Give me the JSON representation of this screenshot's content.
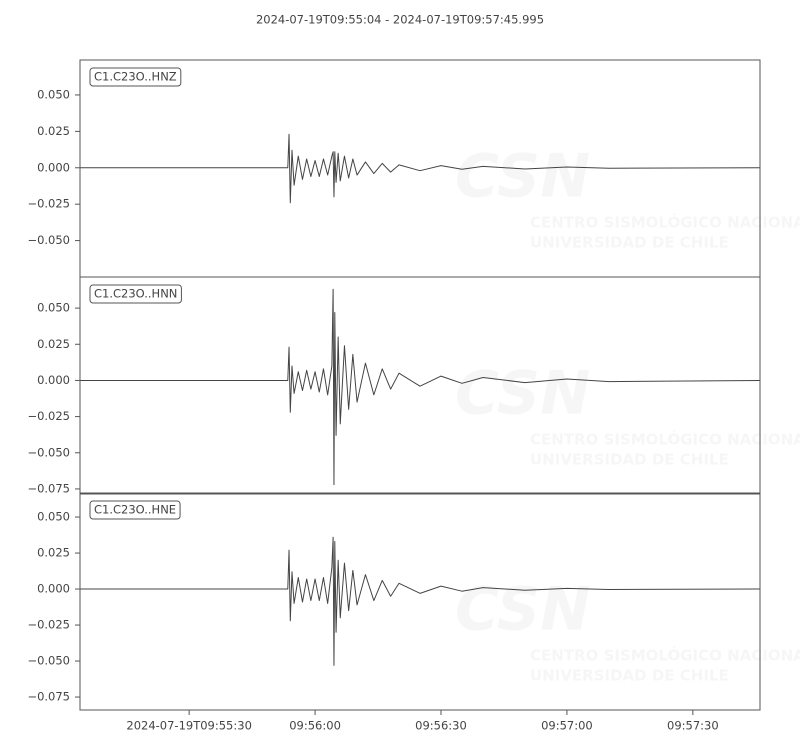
{
  "title": "2024-07-19T09:55:04  -  2024-07-19T09:57:45.995",
  "watermark": {
    "logo": "CSN",
    "line1": "CENTRO SISMOLÓGICO NACIONAL",
    "line2": "UNIVERSIDAD DE CHILE"
  },
  "chart_data": [
    {
      "type": "line",
      "label": "C1.C23O..HNZ",
      "x": [
        "09:55:04",
        "09:55:53.5",
        "09:55:53.8",
        "09:55:54.1",
        "09:55:54.5",
        "09:55:55",
        "09:55:56",
        "09:55:57",
        "09:55:58",
        "09:55:59",
        "09:56:00",
        "09:56:01",
        "09:56:02",
        "09:56:03",
        "09:56:04",
        "09:56:04.3",
        "09:56:04.5",
        "09:56:04.7",
        "09:56:05",
        "09:56:05.5",
        "09:56:06",
        "09:56:07",
        "09:56:08",
        "09:56:09",
        "09:56:10",
        "09:56:12",
        "09:56:14",
        "09:56:16",
        "09:56:18",
        "09:56:20",
        "09:56:25",
        "09:56:30",
        "09:56:35",
        "09:56:40",
        "09:56:50",
        "09:57:00",
        "09:57:10",
        "09:57:45.995"
      ],
      "series": [
        {
          "color": "#444444",
          "values": [
            0,
            0,
            0.023,
            -0.024,
            0.012,
            -0.012,
            0.008,
            -0.008,
            0.006,
            -0.006,
            0.005,
            -0.006,
            0.006,
            -0.005,
            0.008,
            0.011,
            -0.02,
            0.011,
            -0.01,
            0.01,
            -0.009,
            0.008,
            -0.007,
            0.006,
            -0.005,
            0.004,
            -0.004,
            0.003,
            -0.003,
            0.002,
            -0.002,
            0.0015,
            -0.001,
            0.001,
            -0.0008,
            0.0005,
            -0.0003,
            0
          ]
        }
      ],
      "xlim": [
        "09:55:04",
        "09:57:45.995"
      ],
      "ylim": [
        -0.075,
        0.074
      ],
      "yticks": [
        {
          "value": -0.05,
          "label": "−0.050"
        },
        {
          "value": -0.025,
          "label": "−0.025"
        },
        {
          "value": 0,
          "label": "0.000"
        },
        {
          "value": 0.025,
          "label": "0.025"
        },
        {
          "value": 0.05,
          "label": "0.050"
        }
      ]
    },
    {
      "type": "line",
      "label": "C1.C23O..HNN",
      "x": [
        "09:55:04",
        "09:55:53.5",
        "09:55:53.8",
        "09:55:54.1",
        "09:55:54.5",
        "09:55:55",
        "09:55:56",
        "09:55:57",
        "09:55:58",
        "09:55:59",
        "09:56:00",
        "09:56:01",
        "09:56:02",
        "09:56:03",
        "09:56:04",
        "09:56:04.3",
        "09:56:04.5",
        "09:56:04.7",
        "09:56:05",
        "09:56:05.5",
        "09:56:06",
        "09:56:07",
        "09:56:08",
        "09:56:09",
        "09:56:10",
        "09:56:12",
        "09:56:14",
        "09:56:16",
        "09:56:18",
        "09:56:20",
        "09:56:25",
        "09:56:30",
        "09:56:35",
        "09:56:40",
        "09:56:50",
        "09:57:00",
        "09:57:10",
        "09:57:45.995"
      ],
      "series": [
        {
          "color": "#444444",
          "values": [
            0,
            0,
            0.023,
            -0.022,
            0.01,
            -0.009,
            0.006,
            -0.007,
            0.007,
            -0.006,
            0.006,
            -0.008,
            0.008,
            -0.01,
            0.01,
            0.063,
            -0.072,
            0.047,
            -0.038,
            0.03,
            -0.03,
            0.024,
            -0.02,
            0.018,
            -0.015,
            0.012,
            -0.01,
            0.008,
            -0.006,
            0.005,
            -0.004,
            0.003,
            -0.002,
            0.002,
            -0.0015,
            0.001,
            -0.0008,
            0
          ]
        }
      ],
      "xlim": [
        "09:55:04",
        "09:57:45.995"
      ],
      "ylim": [
        -0.0785,
        0.0715
      ],
      "yticks": [
        {
          "value": -0.075,
          "label": "−0.075"
        },
        {
          "value": -0.05,
          "label": "−0.050"
        },
        {
          "value": -0.025,
          "label": "−0.025"
        },
        {
          "value": 0,
          "label": "0.000"
        },
        {
          "value": 0.025,
          "label": "0.025"
        },
        {
          "value": 0.05,
          "label": "0.050"
        }
      ]
    },
    {
      "type": "line",
      "label": "C1.C23O..HNE",
      "x": [
        "09:55:04",
        "09:55:53.5",
        "09:55:53.8",
        "09:55:54.1",
        "09:55:54.5",
        "09:55:55",
        "09:55:56",
        "09:55:57",
        "09:55:58",
        "09:55:59",
        "09:56:00",
        "09:56:01",
        "09:56:02",
        "09:56:03",
        "09:56:04",
        "09:56:04.3",
        "09:56:04.5",
        "09:56:04.7",
        "09:56:05",
        "09:56:05.5",
        "09:56:06",
        "09:56:07",
        "09:56:08",
        "09:56:09",
        "09:56:10",
        "09:56:12",
        "09:56:14",
        "09:56:16",
        "09:56:18",
        "09:56:20",
        "09:56:25",
        "09:56:30",
        "09:56:35",
        "09:56:40",
        "09:56:50",
        "09:57:00",
        "09:57:10",
        "09:57:45.995"
      ],
      "series": [
        {
          "color": "#444444",
          "values": [
            0,
            0,
            0.027,
            -0.022,
            0.012,
            -0.01,
            0.008,
            -0.009,
            0.007,
            -0.008,
            0.007,
            -0.008,
            0.008,
            -0.01,
            0.015,
            0.036,
            -0.053,
            0.033,
            -0.03,
            0.02,
            -0.02,
            0.018,
            -0.015,
            0.013,
            -0.011,
            0.01,
            -0.008,
            0.006,
            -0.005,
            0.004,
            -0.003,
            0.002,
            -0.0015,
            0.001,
            -0.0008,
            0.0005,
            -0.0003,
            0
          ]
        }
      ],
      "xlim": [
        "09:55:04",
        "09:57:45.995"
      ],
      "ylim": [
        -0.084,
        0.0667
      ],
      "yticks": [
        {
          "value": -0.075,
          "label": "−0.075"
        },
        {
          "value": -0.05,
          "label": "−0.050"
        },
        {
          "value": -0.025,
          "label": "−0.025"
        },
        {
          "value": 0,
          "label": "0.000"
        },
        {
          "value": 0.025,
          "label": "0.025"
        },
        {
          "value": 0.05,
          "label": "0.050"
        }
      ],
      "xticks": [
        {
          "value": "09:55:30",
          "label": "2024-07-19T09:55:30"
        },
        {
          "value": "09:56:00",
          "label": "09:56:00"
        },
        {
          "value": "09:56:30",
          "label": "09:56:30"
        },
        {
          "value": "09:57:00",
          "label": "09:57:00"
        },
        {
          "value": "09:57:30",
          "label": "09:57:30"
        }
      ]
    }
  ]
}
